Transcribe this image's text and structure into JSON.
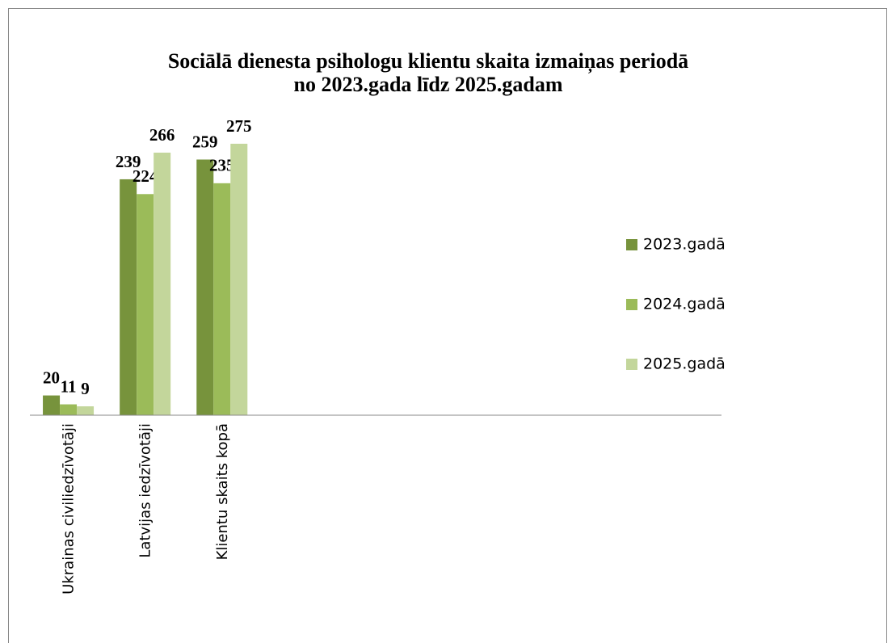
{
  "chart_data": {
    "type": "bar",
    "title": [
      "Sociālā dienesta psihologu klientu skaita izmaiņas periodā",
      "no 2023.gada līdz 2025.gadam"
    ],
    "categories": [
      "Ukrainas civiliedzīvotāji",
      "Latvijas iedzīvotāji",
      "Klientu skaits kopā",
      null,
      null,
      null,
      null,
      null,
      null
    ],
    "series": [
      {
        "name": "2023.gadā",
        "color": "#77933c",
        "values": [
          20,
          239,
          259,
          null,
          null,
          null,
          null,
          null,
          null
        ]
      },
      {
        "name": "2024.gadā",
        "color": "#9bbb59",
        "values": [
          11,
          224,
          235,
          null,
          null,
          null,
          null,
          null,
          null
        ]
      },
      {
        "name": "2025.gadā",
        "color": "#c3d69b",
        "values": [
          9,
          266,
          275,
          null,
          null,
          null,
          null,
          null,
          null
        ]
      }
    ],
    "ylim": [
      0,
      300
    ],
    "legend": "right"
  }
}
